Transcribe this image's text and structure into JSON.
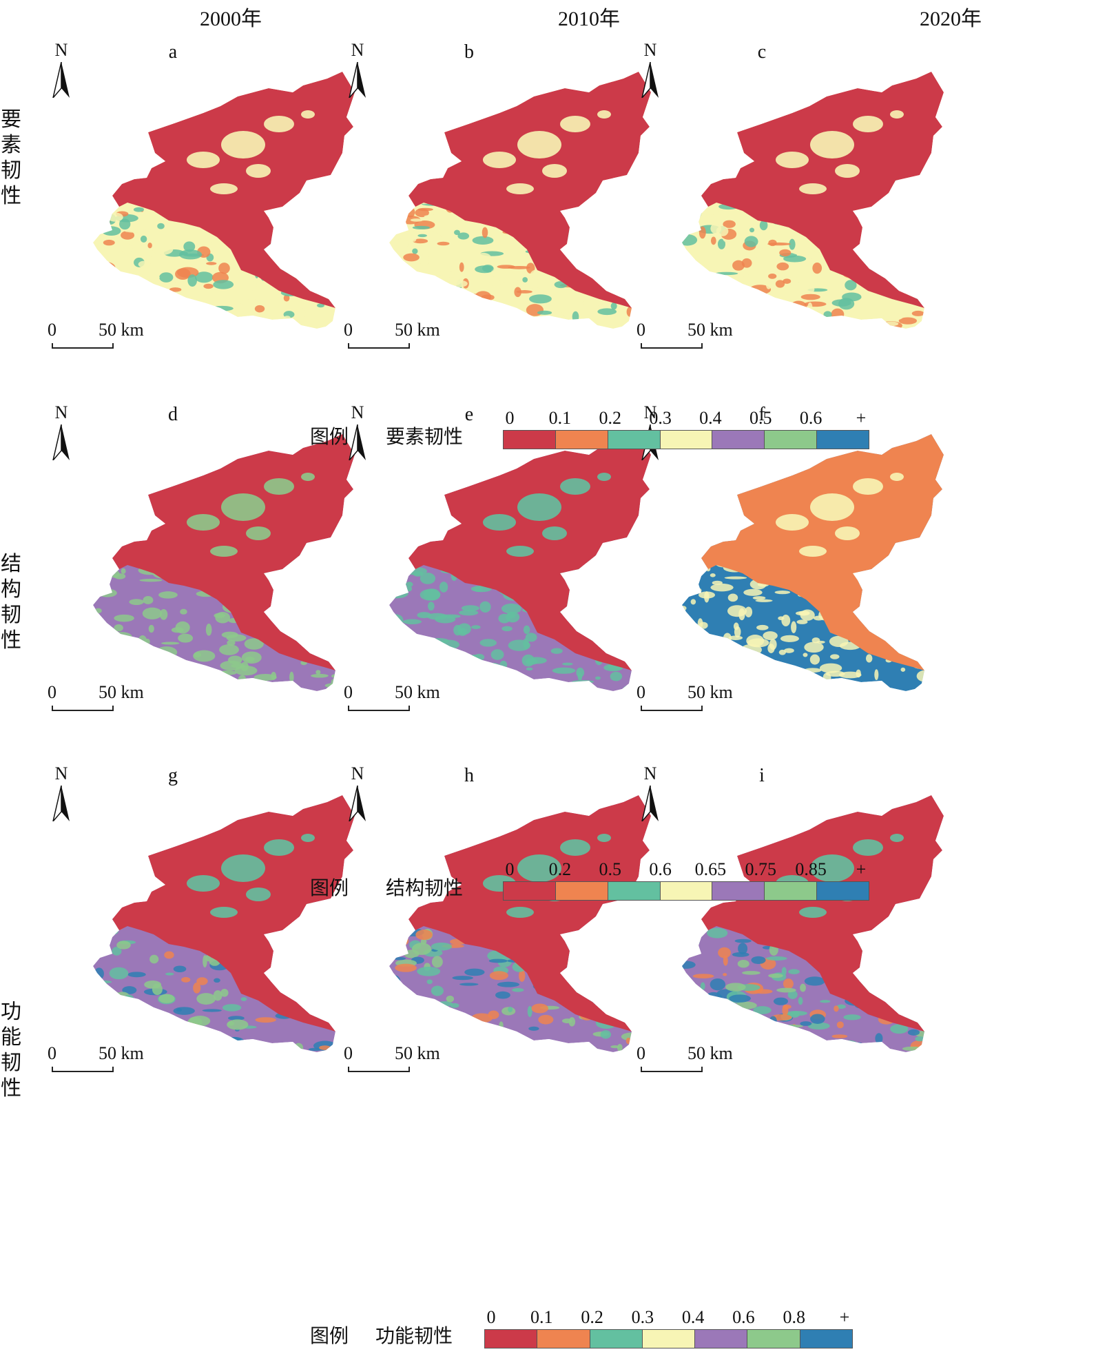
{
  "years": [
    "2000年",
    "2010年",
    "2020年"
  ],
  "row_labels": [
    "要素韧性",
    "结构韧性",
    "功能韧性"
  ],
  "panel_letters": [
    "a",
    "b",
    "c",
    "d",
    "e",
    "f",
    "g",
    "h",
    "i"
  ],
  "north_label": "N",
  "scale": {
    "zero": "0",
    "distance": "50 km"
  },
  "colors": {
    "c1": "#cc3a49",
    "c2": "#ef8450",
    "c3": "#63c0a0",
    "c4": "#f7f5b5",
    "c5": "#9b78b8",
    "c6": "#8dc98b",
    "c7": "#2f7fb3"
  },
  "legends": [
    {
      "prefix": "图例",
      "title": "要素韧性",
      "ticks": [
        "0",
        "0.1",
        "0.2",
        "0.3",
        "0.4",
        "0.5",
        "0.6",
        "+"
      ]
    },
    {
      "prefix": "图例",
      "title": "结构韧性",
      "ticks": [
        "0",
        "0.2",
        "0.5",
        "0.6",
        "0.65",
        "0.75",
        "0.85",
        "+"
      ]
    },
    {
      "prefix": "图例",
      "title": "功能韧性",
      "ticks": [
        "0",
        "0.1",
        "0.2",
        "0.3",
        "0.4",
        "0.6",
        "0.8",
        "+"
      ]
    }
  ],
  "maps": {
    "a": {
      "north": "c1",
      "south": "c4",
      "accents": [
        "c2",
        "c3",
        "c4"
      ]
    },
    "b": {
      "north": "c1",
      "south": "c4",
      "accents": [
        "c2",
        "c3",
        "c4"
      ]
    },
    "c": {
      "north": "c1",
      "south": "c4",
      "accents": [
        "c2",
        "c3",
        "c4"
      ]
    },
    "d": {
      "north": "c1",
      "south": "c5",
      "accents": [
        "c6"
      ]
    },
    "e": {
      "north": "c1",
      "south": "c5",
      "accents": [
        "c3"
      ]
    },
    "f": {
      "north": "c2",
      "south": "c7",
      "accents": [
        "c4"
      ]
    },
    "g": {
      "north": "c1",
      "south": "c5",
      "accents": [
        "c6",
        "c2",
        "c3",
        "c7"
      ]
    },
    "h": {
      "north": "c1",
      "south": "c5",
      "accents": [
        "c6",
        "c2",
        "c3",
        "c7"
      ]
    },
    "i": {
      "north": "c1",
      "south": "c5",
      "accents": [
        "c6",
        "c2",
        "c3",
        "c7"
      ]
    }
  }
}
